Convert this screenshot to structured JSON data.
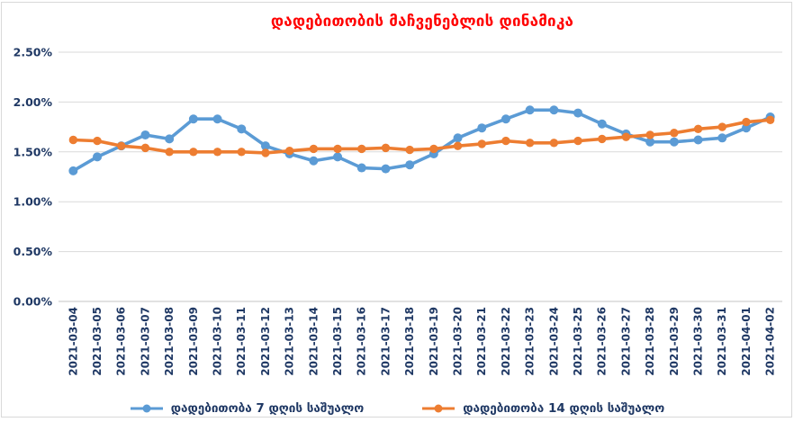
{
  "title": {
    "text": "დადებითობის მაჩვენებლის დინამიკა"
  },
  "colors": {
    "title": "#FF0000",
    "axis_text": "#1F3864",
    "gridline": "#D9D9D9",
    "axis_line": "#C6C6C6",
    "series_blue": "#5B9BD5",
    "series_orange": "#ED7D31",
    "background": "#FFFFFF"
  },
  "chart_data": {
    "type": "line",
    "title": "დადებითობის მაჩვენებლის დინამიკა",
    "xlabel": "",
    "ylabel": "",
    "ylim": [
      0,
      2.5
    ],
    "y_ticks": [
      "0.00%",
      "0.50%",
      "1.00%",
      "1.50%",
      "2.00%",
      "2.50%"
    ],
    "grid": true,
    "legend_position": "bottom",
    "categories": [
      "2021-03-04",
      "2021-03-05",
      "2021-03-06",
      "2021-03-07",
      "2021-03-08",
      "2021-03-09",
      "2021-03-10",
      "2021-03-11",
      "2021-03-12",
      "2021-03-13",
      "2021-03-14",
      "2021-03-15",
      "2021-03-16",
      "2021-03-17",
      "2021-03-18",
      "2021-03-19",
      "2021-03-20",
      "2021-03-21",
      "2021-03-22",
      "2021-03-23",
      "2021-03-24",
      "2021-03-25",
      "2021-03-26",
      "2021-03-27",
      "2021-03-28",
      "2021-03-29",
      "2021-03-30",
      "2021-03-31",
      "2021-04-01",
      "2021-04-02"
    ],
    "series": [
      {
        "name": "დადებითობა 7 დღის საშუალო",
        "color": "#5B9BD5",
        "marker": "circle",
        "values": [
          1.31,
          1.45,
          1.56,
          1.67,
          1.63,
          1.83,
          1.83,
          1.73,
          1.56,
          1.48,
          1.41,
          1.45,
          1.34,
          1.33,
          1.37,
          1.48,
          1.64,
          1.74,
          1.83,
          1.92,
          1.92,
          1.89,
          1.78,
          1.68,
          1.6,
          1.6,
          1.62,
          1.64,
          1.74,
          1.85
        ]
      },
      {
        "name": "დადებითობა 14 დღის საშუალო",
        "color": "#ED7D31",
        "marker": "circle",
        "values": [
          1.62,
          1.61,
          1.56,
          1.54,
          1.5,
          1.5,
          1.5,
          1.5,
          1.49,
          1.51,
          1.53,
          1.53,
          1.53,
          1.54,
          1.52,
          1.53,
          1.56,
          1.58,
          1.61,
          1.59,
          1.59,
          1.61,
          1.63,
          1.65,
          1.67,
          1.69,
          1.73,
          1.75,
          1.8,
          1.82
        ]
      }
    ]
  }
}
